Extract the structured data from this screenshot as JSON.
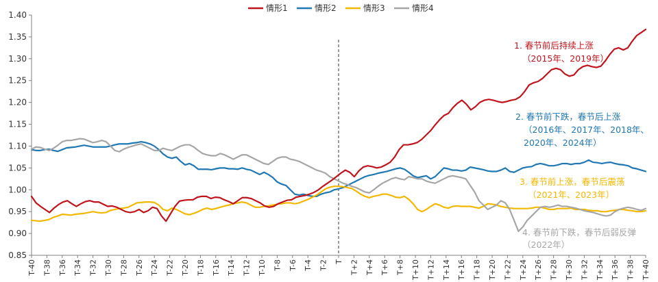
{
  "chart_data": {
    "type": "line",
    "title": "",
    "xlabel": "",
    "ylabel": "",
    "ylim": [
      0.85,
      1.4
    ],
    "yticks": [
      "0.85",
      "0.90",
      "0.95",
      "1.00",
      "1.05",
      "1.10",
      "1.15",
      "1.20",
      "1.25",
      "1.30",
      "1.35",
      "1.40"
    ],
    "xticks": [
      "T-40",
      "T-38",
      "T-36",
      "T-34",
      "T-32",
      "T-30",
      "T-28",
      "T-26",
      "T-24",
      "T-22",
      "T-20",
      "T-18",
      "T-16",
      "T-14",
      "T-12",
      "T-10",
      "T-8",
      "T-6",
      "T-4",
      "T-2",
      "T",
      "T+2",
      "T+4",
      "T+6",
      "T+8",
      "T+10",
      "T+12",
      "T+14",
      "T+16",
      "T+18",
      "T+20",
      "T+22",
      "T+24",
      "T+26",
      "T+28",
      "T+30",
      "T+32",
      "T+34",
      "T+36",
      "T+38",
      "T+40"
    ],
    "x_range": [
      -40,
      40
    ],
    "divider_at": 0,
    "legend_position": "top-center",
    "series": [
      {
        "name": "情形1",
        "color": "#C0141C",
        "values": [
          0.985,
          0.97,
          0.962,
          0.955,
          0.948,
          0.958,
          0.966,
          0.972,
          0.975,
          0.968,
          0.962,
          0.968,
          0.973,
          0.975,
          0.972,
          0.972,
          0.967,
          0.962,
          0.963,
          0.96,
          0.955,
          0.95,
          0.948,
          0.95,
          0.955,
          0.948,
          0.952,
          0.96,
          0.957,
          0.94,
          0.928,
          0.945,
          0.962,
          0.974,
          0.976,
          0.977,
          0.977,
          0.983,
          0.985,
          0.985,
          0.98,
          0.983,
          0.982,
          0.977,
          0.973,
          0.968,
          0.975,
          0.982,
          0.982,
          0.98,
          0.975,
          0.97,
          0.963,
          0.96,
          0.962,
          0.968,
          0.972,
          0.976,
          0.977,
          0.983,
          0.985,
          0.987,
          0.99,
          0.994,
          1.0,
          1.008,
          1.015,
          1.022,
          1.03,
          1.038,
          1.045,
          1.04,
          1.03,
          1.043,
          1.052,
          1.055,
          1.053,
          1.05,
          1.052,
          1.057,
          1.063,
          1.075,
          1.092,
          1.103,
          1.103,
          1.105,
          1.108,
          1.115,
          1.125,
          1.135,
          1.148,
          1.16,
          1.17,
          1.175,
          1.188,
          1.198,
          1.205,
          1.196,
          1.183,
          1.19,
          1.2,
          1.205,
          1.207,
          1.205,
          1.202,
          1.2,
          1.202,
          1.205,
          1.207,
          1.213,
          1.225,
          1.24,
          1.245,
          1.248,
          1.255,
          1.265,
          1.275,
          1.278,
          1.275,
          1.265,
          1.26,
          1.263,
          1.275,
          1.282,
          1.285,
          1.282,
          1.28,
          1.283,
          1.295,
          1.31,
          1.322,
          1.325,
          1.32,
          1.325,
          1.34,
          1.353,
          1.36,
          1.367
        ]
      },
      {
        "name": "情形2",
        "color": "#1F77B4",
        "values": [
          1.092,
          1.09,
          1.09,
          1.092,
          1.093,
          1.09,
          1.088,
          1.092,
          1.096,
          1.097,
          1.098,
          1.1,
          1.102,
          1.1,
          1.098,
          1.098,
          1.098,
          1.098,
          1.1,
          1.103,
          1.105,
          1.105,
          1.105,
          1.107,
          1.108,
          1.11,
          1.108,
          1.105,
          1.1,
          1.092,
          1.082,
          1.075,
          1.072,
          1.075,
          1.065,
          1.057,
          1.06,
          1.055,
          1.047,
          1.047,
          1.047,
          1.046,
          1.048,
          1.05,
          1.05,
          1.048,
          1.048,
          1.047,
          1.05,
          1.047,
          1.045,
          1.04,
          1.035,
          1.04,
          1.035,
          1.028,
          1.018,
          1.013,
          1.01,
          1.0,
          0.99,
          0.988,
          0.99,
          0.987,
          0.985,
          0.985,
          0.99,
          0.993,
          0.995,
          1.0,
          1.002,
          1.005,
          1.01,
          1.015,
          1.02,
          1.025,
          1.03,
          1.033,
          1.035,
          1.038,
          1.04,
          1.042,
          1.045,
          1.048,
          1.05,
          1.047,
          1.04,
          1.032,
          1.028,
          1.03,
          1.032,
          1.025,
          1.03,
          1.04,
          1.05,
          1.048,
          1.045,
          1.045,
          1.043,
          1.045,
          1.052,
          1.05,
          1.048,
          1.046,
          1.043,
          1.042,
          1.042,
          1.045,
          1.05,
          1.042,
          1.04,
          1.045,
          1.05,
          1.052,
          1.053,
          1.058,
          1.06,
          1.058,
          1.055,
          1.055,
          1.057,
          1.06,
          1.06,
          1.058,
          1.06,
          1.06,
          1.063,
          1.068,
          1.063,
          1.062,
          1.06,
          1.062,
          1.063,
          1.06,
          1.058,
          1.057,
          1.055,
          1.05,
          1.048,
          1.045,
          1.042
        ]
      },
      {
        "name": "情形3",
        "color": "#F2B800",
        "values": [
          0.93,
          0.929,
          0.928,
          0.93,
          0.932,
          0.937,
          0.94,
          0.944,
          0.943,
          0.942,
          0.944,
          0.945,
          0.946,
          0.948,
          0.95,
          0.948,
          0.947,
          0.948,
          0.953,
          0.955,
          0.957,
          0.958,
          0.96,
          0.965,
          0.97,
          0.971,
          0.972,
          0.972,
          0.971,
          0.965,
          0.955,
          0.952,
          0.958,
          0.955,
          0.95,
          0.945,
          0.943,
          0.946,
          0.95,
          0.955,
          0.958,
          0.955,
          0.957,
          0.96,
          0.963,
          0.965,
          0.968,
          0.97,
          0.972,
          0.97,
          0.965,
          0.96,
          0.96,
          0.962,
          0.963,
          0.965,
          0.967,
          0.968,
          0.97,
          0.97,
          0.968,
          0.97,
          0.974,
          0.978,
          0.983,
          0.988,
          0.995,
          1.002,
          1.006,
          1.008,
          1.008,
          1.007,
          1.005,
          1.003,
          0.997,
          0.99,
          0.985,
          0.982,
          0.985,
          0.987,
          0.99,
          0.99,
          0.987,
          0.983,
          0.982,
          0.985,
          0.978,
          0.968,
          0.955,
          0.95,
          0.955,
          0.962,
          0.968,
          0.965,
          0.96,
          0.958,
          0.962,
          0.963,
          0.962,
          0.962,
          0.962,
          0.96,
          0.958,
          0.962,
          0.968,
          0.967,
          0.965,
          0.962,
          0.96,
          0.958,
          0.957,
          0.957,
          0.957,
          0.957,
          0.958,
          0.96,
          0.96,
          0.958,
          0.955,
          0.955,
          0.957,
          0.957,
          0.957,
          0.958,
          0.955,
          0.955,
          0.955,
          0.953,
          0.952,
          0.952,
          0.95,
          0.95,
          0.952,
          0.953,
          0.955,
          0.955,
          0.953,
          0.952,
          0.95,
          0.95,
          0.952
        ]
      },
      {
        "name": "情形4",
        "color": "#A6A6A6",
        "values": [
          1.093,
          1.098,
          1.097,
          1.093,
          1.09,
          1.095,
          1.102,
          1.11,
          1.113,
          1.113,
          1.115,
          1.117,
          1.116,
          1.112,
          1.108,
          1.11,
          1.113,
          1.11,
          1.1,
          1.09,
          1.087,
          1.093,
          1.097,
          1.1,
          1.103,
          1.105,
          1.1,
          1.095,
          1.09,
          1.09,
          1.095,
          1.092,
          1.09,
          1.095,
          1.1,
          1.103,
          1.103,
          1.098,
          1.09,
          1.083,
          1.08,
          1.078,
          1.078,
          1.083,
          1.08,
          1.075,
          1.07,
          1.075,
          1.08,
          1.08,
          1.075,
          1.07,
          1.065,
          1.06,
          1.058,
          1.065,
          1.072,
          1.075,
          1.075,
          1.07,
          1.068,
          1.065,
          1.06,
          1.055,
          1.05,
          1.045,
          1.042,
          1.038,
          1.03,
          1.025,
          1.02,
          1.015,
          1.012,
          1.008,
          1.005,
          1.0,
          0.995,
          0.993,
          1.0,
          1.008,
          1.015,
          1.02,
          1.025,
          1.028,
          1.025,
          1.023,
          1.03,
          1.028,
          1.025,
          1.025,
          1.02,
          1.017,
          1.015,
          1.02,
          1.025,
          1.03,
          1.032,
          1.03,
          1.028,
          1.025,
          1.01,
          0.995,
          0.975,
          0.965,
          0.955,
          0.96,
          0.965,
          0.975,
          0.97,
          0.955,
          0.93,
          0.905,
          0.915,
          0.93,
          0.94,
          0.95,
          0.96,
          0.962,
          0.96,
          0.962,
          0.965,
          0.962,
          0.962,
          0.96,
          0.958,
          0.955,
          0.952,
          0.95,
          0.948,
          0.945,
          0.942,
          0.94,
          0.942,
          0.95,
          0.955,
          0.958,
          0.96,
          0.958,
          0.955,
          0.953,
          0.957
        ]
      }
    ],
    "annotations": [
      {
        "lines": [
          "1. 春节前后持续上涨",
          "（2015年、2019年）"
        ],
        "color": "#C0141C"
      },
      {
        "lines": [
          "2. 春节前下跌，春节后上涨",
          "（2016年、2017年、2018年、",
          "2020年、2024年）"
        ],
        "color": "#1F77B4"
      },
      {
        "lines": [
          "3. 春节前上涨，春节后震荡",
          "（2021年、2023年）"
        ],
        "color": "#F2B800"
      },
      {
        "lines": [
          "4. 春节前下跌，春节后弱反弹",
          "（2022年）"
        ],
        "color": "#A6A6A6"
      }
    ]
  }
}
